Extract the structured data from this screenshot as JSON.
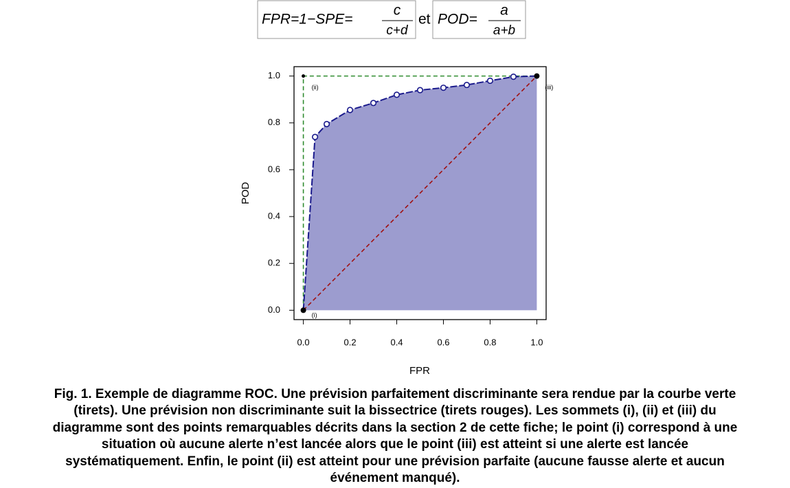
{
  "formulas": [
    {
      "lhs": "FPR=1−SPE=",
      "numerator": "c",
      "denominator": "c+d"
    },
    {
      "lhs": "POD=",
      "numerator": "a",
      "denominator": "a+b"
    }
  ],
  "connector": "et",
  "chart_data": {
    "type": "roc",
    "xlabel": "FPR",
    "ylabel": "POD",
    "xlim": [
      -0.04,
      1.04
    ],
    "ylim": [
      -0.04,
      1.04
    ],
    "xticks": [
      {
        "value": 0,
        "label": "0.0"
      },
      {
        "value": 0.2,
        "label": "0.2"
      },
      {
        "value": 0.4,
        "label": "0.4"
      },
      {
        "value": 0.6,
        "label": "0.6"
      },
      {
        "value": 0.8,
        "label": "0.8"
      },
      {
        "value": 1,
        "label": "1.0"
      }
    ],
    "yticks": [
      {
        "value": 0,
        "label": "0.0"
      },
      {
        "value": 0.2,
        "label": "0.2"
      },
      {
        "value": 0.4,
        "label": "0.4"
      },
      {
        "value": 0.6,
        "label": "0.6"
      },
      {
        "value": 0.8,
        "label": "0.8"
      },
      {
        "value": 1,
        "label": "1.0"
      }
    ],
    "curve": {
      "color": "#1a1a8c",
      "fill": "#9c9ccf",
      "x": [
        0,
        0.05,
        0.1,
        0.2,
        0.3,
        0.4,
        0.5,
        0.6,
        0.7,
        0.8,
        0.9,
        1
      ],
      "y": [
        0,
        0.74,
        0.795,
        0.855,
        0.885,
        0.92,
        0.94,
        0.95,
        0.962,
        0.98,
        0.997,
        1
      ]
    },
    "perfect": {
      "color": "#2e8b2e",
      "x": [
        0,
        0,
        1
      ],
      "y": [
        0,
        1,
        1
      ]
    },
    "random": {
      "color": "#a01010",
      "x": [
        0,
        1
      ],
      "y": [
        0,
        1
      ]
    },
    "points": [
      {
        "label": "(i)",
        "x": 0,
        "y": 0
      },
      {
        "label": "(ii)",
        "x": 0,
        "y": 1
      },
      {
        "label": "(iii)",
        "x": 1,
        "y": 1
      }
    ]
  },
  "caption": [
    "Fig. 1. Exemple de diagramme ROC. Une prévision parfaitement discriminante sera rendue par la courbe verte",
    "(tirets). Une prévision non discriminante suit la bissectrice (tirets rouges). Les sommets (i), (ii) et (iii) du",
    "diagramme sont des points remarquables décrits dans la section 2 de cette fiche; le point (i) correspond à une",
    "situation où aucune alerte n’est lancée alors que le point (iii) est atteint si une alerte est lancée",
    "systématiquement. Enfin, le point (ii) est atteint pour une prévision parfaite (aucune fausse alerte et aucun",
    "événement manqué)."
  ]
}
